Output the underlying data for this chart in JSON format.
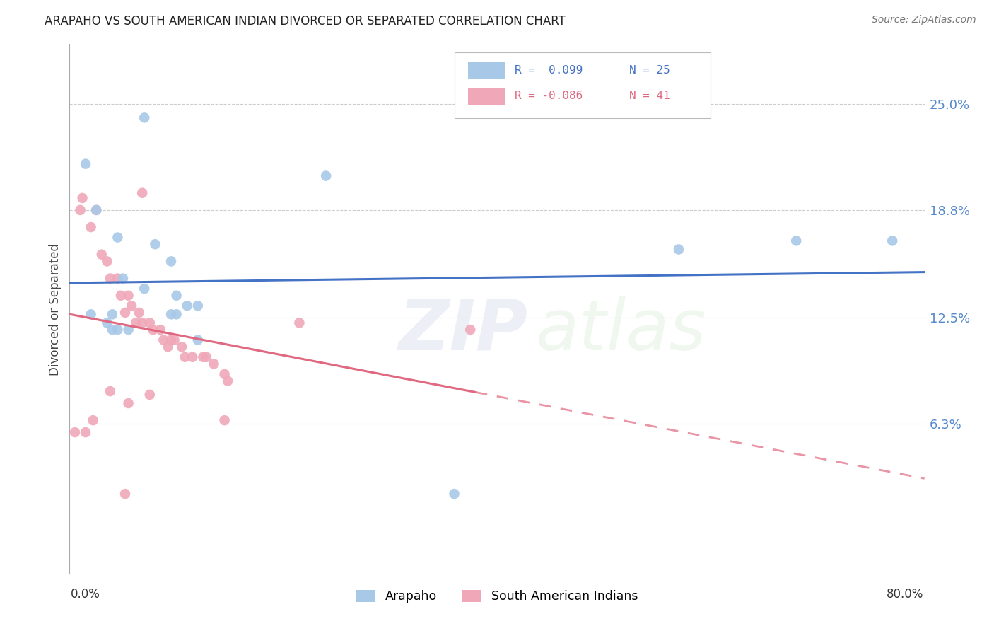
{
  "title": "ARAPAHO VS SOUTH AMERICAN INDIAN DIVORCED OR SEPARATED CORRELATION CHART",
  "source": "Source: ZipAtlas.com",
  "ylabel": "Divorced or Separated",
  "yticks": [
    0.063,
    0.125,
    0.188,
    0.25
  ],
  "ytick_labels": [
    "6.3%",
    "12.5%",
    "18.8%",
    "25.0%"
  ],
  "xlim": [
    0.0,
    0.8
  ],
  "ylim": [
    -0.025,
    0.285
  ],
  "watermark_zip": "ZIP",
  "watermark_atlas": "atlas",
  "blue_scatter_color": "#a8c8e8",
  "pink_scatter_color": "#f0a8b8",
  "blue_line_color": "#4472c4",
  "pink_line_color": "#e06880",
  "legend_label_blue": "Arapaho",
  "legend_label_pink": "South American Indians",
  "arapaho_x": [
    0.015,
    0.07,
    0.24,
    0.025,
    0.045,
    0.08,
    0.095,
    0.05,
    0.07,
    0.1,
    0.11,
    0.12,
    0.095,
    0.1,
    0.04,
    0.02,
    0.035,
    0.04,
    0.055,
    0.045,
    0.57,
    0.68,
    0.12,
    0.36,
    0.77
  ],
  "arapaho_y": [
    0.215,
    0.242,
    0.208,
    0.188,
    0.172,
    0.168,
    0.158,
    0.148,
    0.142,
    0.138,
    0.132,
    0.132,
    0.127,
    0.127,
    0.127,
    0.127,
    0.122,
    0.118,
    0.118,
    0.118,
    0.165,
    0.17,
    0.112,
    0.022,
    0.17
  ],
  "south_american_x": [
    0.005,
    0.012,
    0.01,
    0.02,
    0.025,
    0.03,
    0.035,
    0.038,
    0.045,
    0.048,
    0.055,
    0.058,
    0.052,
    0.065,
    0.068,
    0.062,
    0.075,
    0.078,
    0.085,
    0.088,
    0.095,
    0.098,
    0.092,
    0.105,
    0.108,
    0.115,
    0.125,
    0.128,
    0.135,
    0.145,
    0.148,
    0.038,
    0.075,
    0.055,
    0.022,
    0.015,
    0.068,
    0.375,
    0.215,
    0.145,
    0.052
  ],
  "south_american_y": [
    0.058,
    0.195,
    0.188,
    0.178,
    0.188,
    0.162,
    0.158,
    0.148,
    0.148,
    0.138,
    0.138,
    0.132,
    0.128,
    0.128,
    0.122,
    0.122,
    0.122,
    0.118,
    0.118,
    0.112,
    0.112,
    0.112,
    0.108,
    0.108,
    0.102,
    0.102,
    0.102,
    0.102,
    0.098,
    0.092,
    0.088,
    0.082,
    0.08,
    0.075,
    0.065,
    0.058,
    0.198,
    0.118,
    0.122,
    0.065,
    0.022
  ]
}
